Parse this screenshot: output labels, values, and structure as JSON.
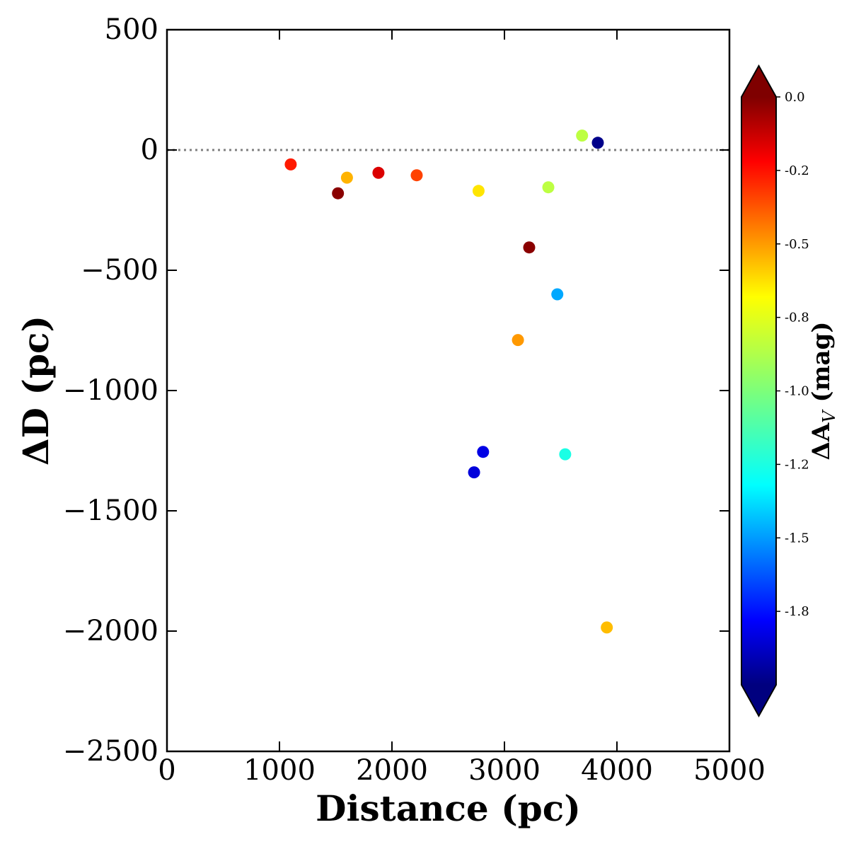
{
  "chart_data": {
    "type": "scatter",
    "title": "",
    "xlabel": "Distance (pc)",
    "ylabel": "ΔD (pc)",
    "xlim": [
      0,
      5000
    ],
    "ylim": [
      -2500,
      500
    ],
    "x_ticks": [
      0,
      1000,
      2000,
      3000,
      4000,
      5000
    ],
    "x_tick_labels": [
      "0",
      "1000",
      "2000",
      "3000",
      "4000",
      "5000"
    ],
    "y_ticks": [
      500,
      0,
      -500,
      -1000,
      -1500,
      -2000,
      -2500
    ],
    "y_tick_labels": [
      "500",
      "0",
      "−500",
      "−1000",
      "−1500",
      "−2000",
      "−2500"
    ],
    "reference_line": {
      "y": 0,
      "style": "dotted",
      "color": "#808080"
    },
    "colorbar": {
      "label": "ΔA_V (mag)",
      "label_main": "ΔA",
      "label_sub": "V",
      "label_unit": " (mag)",
      "colormap": "jet",
      "vmin": -2.0,
      "vmax": 0.0,
      "extend": "both",
      "ticks": [
        0.0,
        -0.25,
        -0.5,
        -0.75,
        -1.0,
        -1.25,
        -1.5,
        -1.75
      ],
      "tick_labels": [
        "0.0",
        "-0.2",
        "-0.5",
        "-0.8",
        "-1.0",
        "-1.2",
        "-1.5",
        "-1.8"
      ]
    },
    "points": [
      {
        "x": 1100,
        "y": -60,
        "c": -0.3
      },
      {
        "x": 1520,
        "y": -180,
        "c": -0.02
      },
      {
        "x": 1600,
        "y": -115,
        "c": -0.6
      },
      {
        "x": 1880,
        "y": -95,
        "c": -0.18
      },
      {
        "x": 2220,
        "y": -105,
        "c": -0.38
      },
      {
        "x": 2770,
        "y": -170,
        "c": -0.7
      },
      {
        "x": 3390,
        "y": -155,
        "c": -0.88
      },
      {
        "x": 3690,
        "y": 60,
        "c": -0.88
      },
      {
        "x": 3830,
        "y": 30,
        "c": -1.98
      },
      {
        "x": 3220,
        "y": -405,
        "c": -0.02
      },
      {
        "x": 3470,
        "y": -600,
        "c": -1.42
      },
      {
        "x": 3120,
        "y": -790,
        "c": -0.55
      },
      {
        "x": 2810,
        "y": -1255,
        "c": -1.8
      },
      {
        "x": 2730,
        "y": -1340,
        "c": -1.82
      },
      {
        "x": 3540,
        "y": -1265,
        "c": -1.2
      },
      {
        "x": 3910,
        "y": -1985,
        "c": -0.62
      }
    ]
  }
}
